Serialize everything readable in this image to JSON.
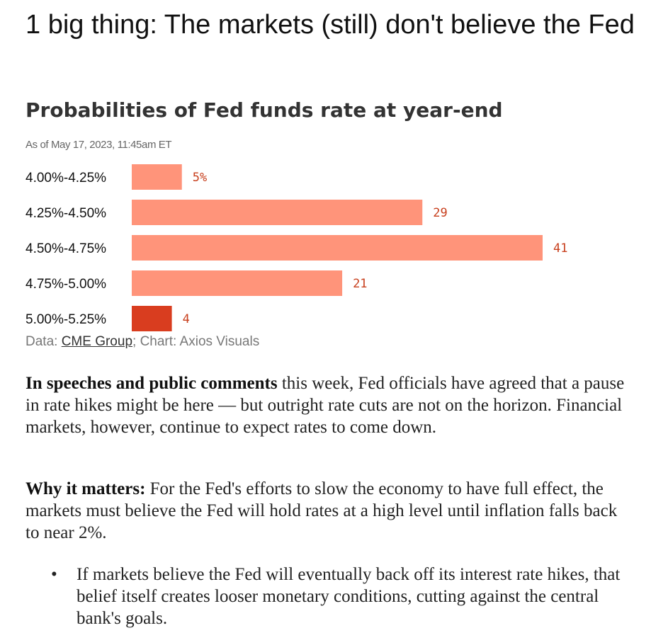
{
  "headline": "1 big thing: The markets (still) don't believe the Fed",
  "chart_data": {
    "type": "bar",
    "orientation": "horizontal",
    "title": "Probabilities of Fed funds rate at year-end",
    "subtitle": "As of May 17, 2023, 11:45am ET",
    "categories": [
      "4.00%-4.25%",
      "4.25%-4.50%",
      "4.50%-4.75%",
      "4.75%-5.00%",
      "5.00%-5.25%"
    ],
    "values": [
      5,
      29,
      41,
      21,
      4
    ],
    "value_labels": [
      "5%",
      "29",
      "41",
      "21",
      "4"
    ],
    "highlight_index": 4,
    "colors": {
      "bar": "#ff947a",
      "highlight": "#d93d1f",
      "value_text": "#c8401e"
    },
    "xlim": [
      0,
      41
    ]
  },
  "source": {
    "data_prefix": "Data: ",
    "data_link": "CME Group",
    "chart_suffix": "; Chart: Axios Visuals"
  },
  "paragraphs": [
    {
      "lead": "In speeches and public comments",
      "text": " this week, Fed officials have agreed that a pause in rate hikes might be here — but outright rate cuts are not on the horizon. Financial markets, however, continue to expect rates to come down."
    },
    {
      "lead": "Why it matters:",
      "text": " For the Fed's efforts to slow the economy to have full effect, the markets must believe the Fed will hold rates at a high level until inflation falls back to near 2%."
    }
  ],
  "bullets": [
    {
      "marker": "•",
      "text": "If markets believe the Fed will eventually back off its interest rate hikes, that belief itself creates looser monetary conditions, cutting against the central bank's goals."
    }
  ]
}
